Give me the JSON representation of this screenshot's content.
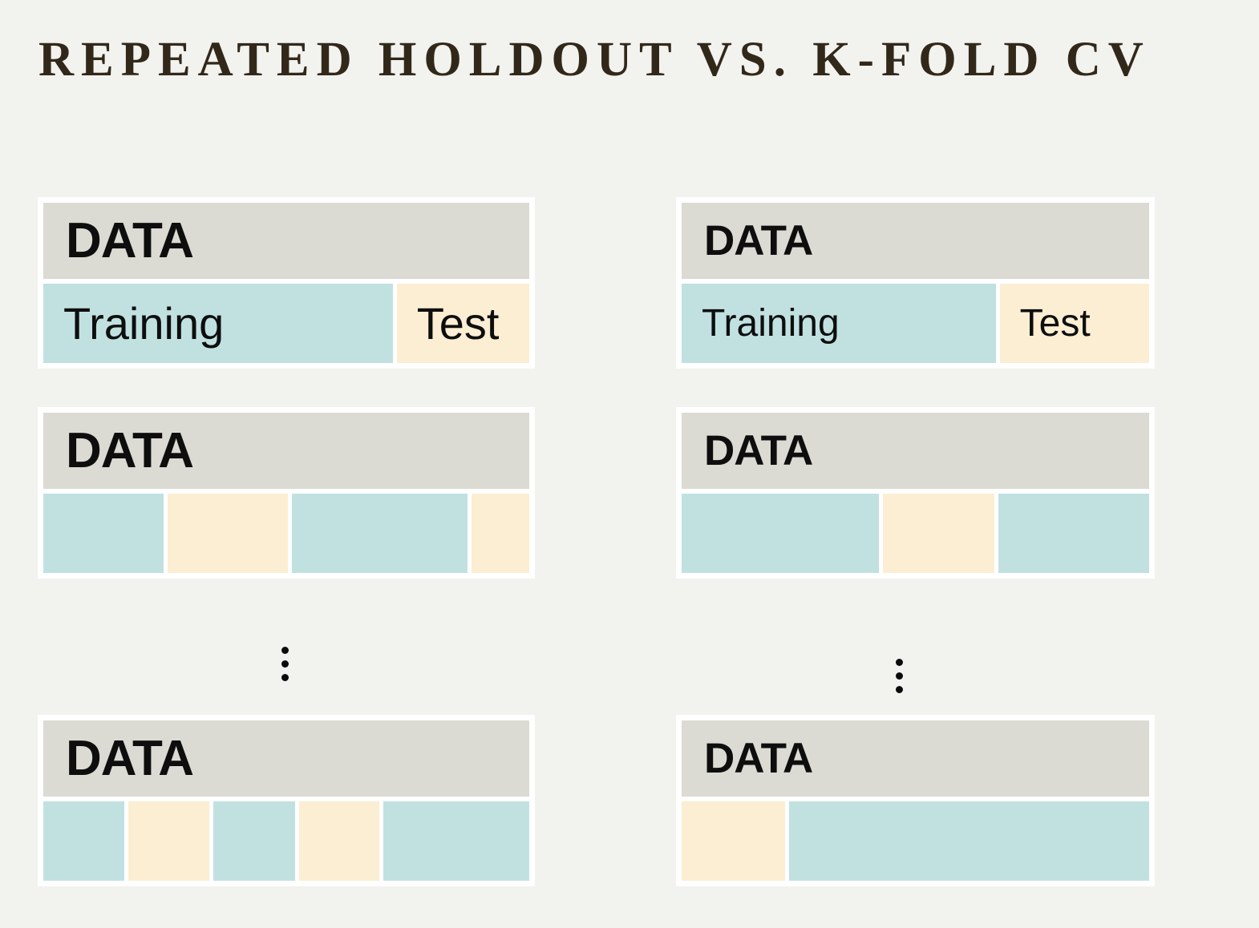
{
  "title": "REPEATED HOLDOUT VS. K-FOLD CV",
  "colors": {
    "background": "#f2f2ef",
    "panel_frame": "#ffffff",
    "header_fill": "#dbdbd4",
    "training_fill": "#c1e1e1",
    "test_fill": "#fbeed3",
    "title_text": "#32281a",
    "label_text": "#0e0e0e",
    "dot": "#0b0b0b"
  },
  "columns": [
    {
      "id": "repeated-holdout",
      "ellipsis_dot_count": 3,
      "panels": [
        {
          "header_label": "DATA",
          "segments": [
            {
              "role": "training",
              "flex": 435,
              "label": "Training"
            },
            {
              "role": "test",
              "flex": 165,
              "label": "Test"
            }
          ]
        },
        {
          "header_label": "DATA",
          "segments": [
            {
              "role": "training",
              "flex": 151
            },
            {
              "role": "test",
              "flex": 152
            },
            {
              "role": "training",
              "flex": 220
            },
            {
              "role": "test",
              "flex": 73
            }
          ]
        },
        {
          "header_label": "DATA",
          "segments": [
            {
              "role": "training",
              "flex": 102
            },
            {
              "role": "test",
              "flex": 103
            },
            {
              "role": "training",
              "flex": 103
            },
            {
              "role": "test",
              "flex": 102
            },
            {
              "role": "training",
              "flex": 184
            }
          ]
        }
      ]
    },
    {
      "id": "k-fold-cv",
      "ellipsis_dot_count": 3,
      "panels": [
        {
          "header_label": "DATA",
          "segments": [
            {
              "role": "training",
              "flex": 391,
              "label": "Training"
            },
            {
              "role": "test",
              "flex": 186,
              "label": "Test"
            }
          ]
        },
        {
          "header_label": "DATA",
          "segments": [
            {
              "role": "training",
              "flex": 250
            },
            {
              "role": "test",
              "flex": 141
            },
            {
              "role": "training",
              "flex": 191
            }
          ]
        },
        {
          "header_label": "DATA",
          "segments": [
            {
              "role": "test",
              "flex": 129
            },
            {
              "role": "training",
              "flex": 447
            }
          ]
        }
      ]
    }
  ]
}
